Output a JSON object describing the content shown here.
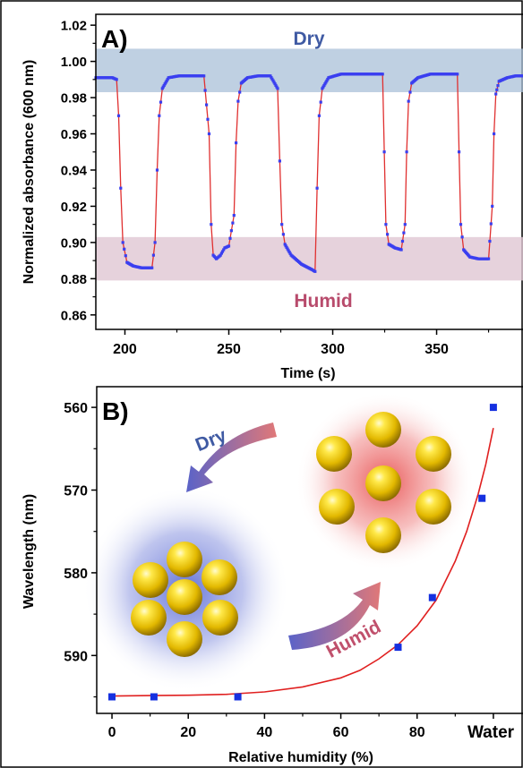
{
  "chart_data": [
    {
      "panel": "A)",
      "type": "line",
      "title": "",
      "xlabel": "Time (s)",
      "ylabel": "Normalized absorbance (600 nm)",
      "xlim": [
        186,
        392
      ],
      "ylim": [
        0.852,
        1.026
      ],
      "xticks": [
        200,
        250,
        300,
        350
      ],
      "yticks": [
        0.86,
        0.88,
        0.9,
        0.92,
        0.94,
        0.96,
        0.98,
        1.0,
        1.02
      ],
      "ytick_labels": [
        "0.86",
        "0.88",
        "0.90",
        "0.92",
        "0.94",
        "0.96",
        "0.98",
        "1.00",
        "1.02"
      ],
      "bands": [
        {
          "label": "Dry",
          "ymin": 0.983,
          "ymax": 1.007,
          "color": "#a9c0d8"
        },
        {
          "label": "Humid",
          "ymin": 0.879,
          "ymax": 0.903,
          "color": "#e0c7d3"
        }
      ],
      "series": [
        {
          "marker_color": "#3a3ff0",
          "line_color": "#e03030",
          "x": [
            186,
            190,
            194,
            196,
            197,
            198,
            199,
            201,
            204,
            208,
            213,
            214.5,
            215.5,
            216.5,
            218,
            221,
            226,
            232,
            238,
            240.5,
            241.5,
            242.5,
            244,
            246,
            248,
            250,
            252.5,
            253.5,
            254.5,
            256,
            259,
            264,
            270,
            273.5,
            274.5,
            275.5,
            277,
            280,
            285,
            290,
            291.5,
            292.5,
            293.5,
            295,
            298,
            304,
            312,
            320,
            324,
            324.8,
            325.6,
            327,
            330,
            333,
            334.8,
            335.6,
            336.5,
            338,
            341,
            347,
            355,
            360,
            360.8,
            361.6,
            363,
            366,
            370,
            375,
            376.8,
            377.6,
            378.5,
            380,
            384,
            388,
            392
          ],
          "y": [
            0.991,
            0.991,
            0.991,
            0.99,
            0.97,
            0.93,
            0.9,
            0.889,
            0.887,
            0.886,
            0.886,
            0.9,
            0.94,
            0.97,
            0.985,
            0.991,
            0.992,
            0.992,
            0.992,
            0.96,
            0.91,
            0.893,
            0.891,
            0.893,
            0.897,
            0.898,
            0.915,
            0.955,
            0.978,
            0.988,
            0.991,
            0.992,
            0.992,
            0.985,
            0.945,
            0.91,
            0.899,
            0.893,
            0.888,
            0.885,
            0.884,
            0.93,
            0.97,
            0.985,
            0.991,
            0.993,
            0.993,
            0.993,
            0.993,
            0.95,
            0.91,
            0.899,
            0.897,
            0.896,
            0.91,
            0.95,
            0.978,
            0.988,
            0.991,
            0.993,
            0.993,
            0.993,
            0.95,
            0.91,
            0.896,
            0.892,
            0.891,
            0.891,
            0.92,
            0.96,
            0.982,
            0.989,
            0.991,
            0.992,
            0.992
          ]
        }
      ],
      "annotations": [
        "Dry",
        "Humid"
      ]
    },
    {
      "panel": "B)",
      "type": "scatter",
      "title": "",
      "xlabel": "Relative humidity (%)",
      "ylabel": "Wavelength (nm)",
      "xlim": [
        -4,
        108
      ],
      "ylim": [
        597,
        557.5
      ],
      "xticks": [
        0,
        20,
        40,
        60,
        80
      ],
      "yticks": [
        560,
        570,
        580,
        590
      ],
      "extra_xtick_label": "Water",
      "points": [
        {
          "x": 0,
          "y": 595
        },
        {
          "x": 11,
          "y": 595
        },
        {
          "x": 33,
          "y": 595
        },
        {
          "x": 75,
          "y": 589
        },
        {
          "x": 84,
          "y": 583
        },
        {
          "x": 97,
          "y": 571
        },
        {
          "x": 100,
          "y": 560
        }
      ],
      "fit": {
        "x": [
          0,
          10,
          20,
          30,
          40,
          50,
          60,
          65,
          70,
          75,
          80,
          85,
          90,
          93,
          96,
          98,
          100
        ],
        "y": [
          594.9,
          594.85,
          594.8,
          594.7,
          594.4,
          593.8,
          592.7,
          591.8,
          590.4,
          588.7,
          586.4,
          583.3,
          578.6,
          575.0,
          570.5,
          566.9,
          562.5
        ]
      },
      "marker_color": "#1530e0",
      "fit_color": "#e02020",
      "annotations": [
        "Dry",
        "Humid"
      ]
    }
  ]
}
